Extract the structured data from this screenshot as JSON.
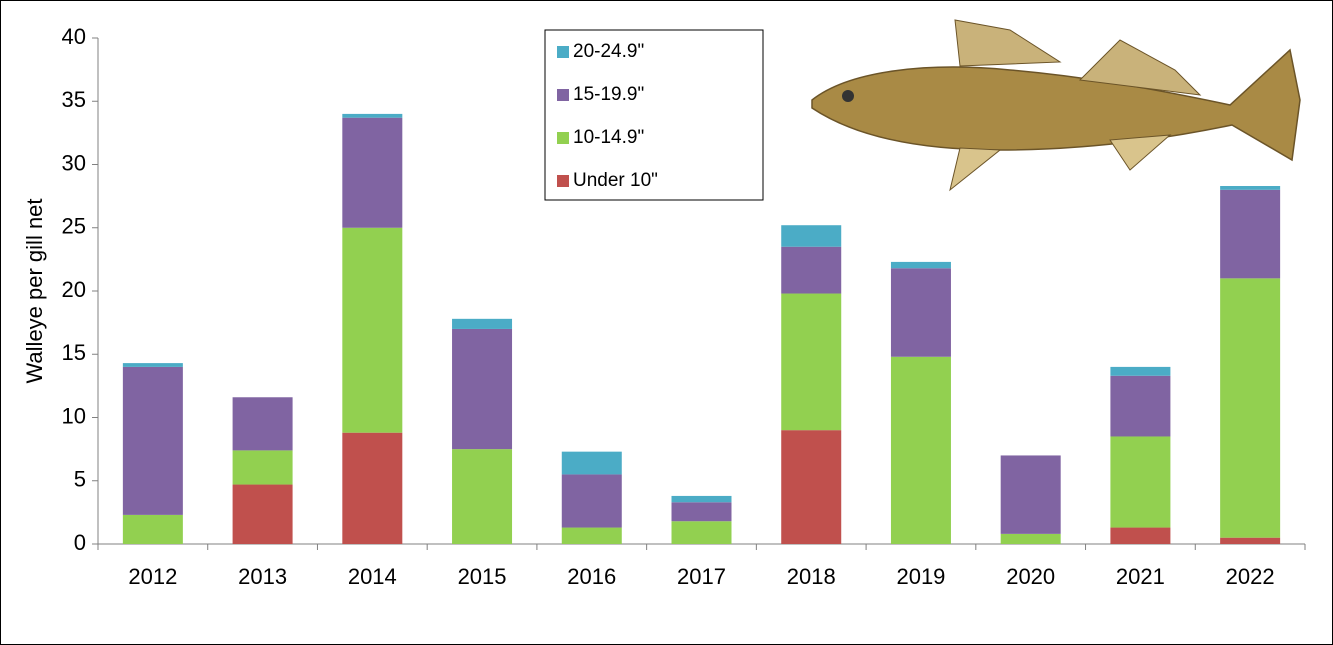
{
  "chart_data": {
    "type": "bar",
    "stacked": true,
    "y_label": "Walleye per gill net",
    "categories": [
      "2012",
      "2013",
      "2014",
      "2015",
      "2016",
      "2017",
      "2018",
      "2019",
      "2020",
      "2021",
      "2022"
    ],
    "series": [
      {
        "name": "Under 10\"",
        "color": "#c0504d",
        "values": [
          0,
          4.7,
          8.8,
          0,
          0,
          0,
          9.0,
          0,
          0,
          1.3,
          0.5
        ]
      },
      {
        "name": "10-14.9\"",
        "color": "#92d050",
        "values": [
          2.3,
          2.7,
          16.2,
          7.5,
          1.3,
          1.8,
          10.8,
          14.8,
          0.8,
          7.2,
          20.5
        ]
      },
      {
        "name": "15-19.9\"",
        "color": "#8064a2",
        "values": [
          11.7,
          4.2,
          8.7,
          9.5,
          4.2,
          1.5,
          3.7,
          7.0,
          6.2,
          4.8,
          7.0
        ]
      },
      {
        "name": "20-24.9\"",
        "color": "#4bacc6",
        "values": [
          0.3,
          0,
          0.3,
          0.8,
          1.8,
          0.5,
          1.7,
          0.5,
          0,
          0.7,
          0.3
        ]
      }
    ],
    "ylim": [
      0,
      40
    ],
    "yticks": [
      0,
      5,
      10,
      15,
      20,
      25,
      30,
      35,
      40
    ],
    "grid": false
  }
}
